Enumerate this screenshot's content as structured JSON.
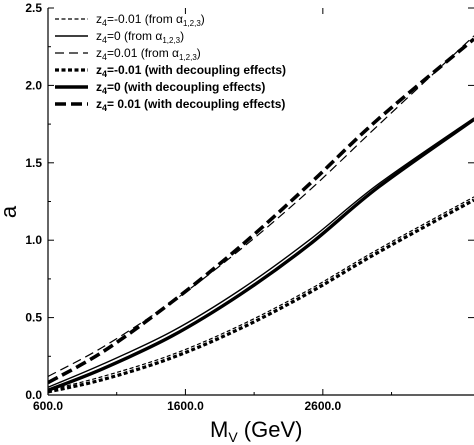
{
  "chart_data": {
    "type": "line",
    "xlabel_main": "M",
    "xlabel_sub": "V",
    "xlabel_unit": " (GeV)",
    "ylabel": "a",
    "xlim": [
      600,
      3700
    ],
    "ylim": [
      0,
      2.5
    ],
    "x_ticks": [
      {
        "value": 600,
        "label": "600.0"
      },
      {
        "value": 1600,
        "label": "1600.0"
      },
      {
        "value": 2600,
        "label": "2600.0"
      }
    ],
    "y_ticks": [
      {
        "value": 0,
        "label": "0.0"
      },
      {
        "value": 0.5,
        "label": "0.5"
      },
      {
        "value": 1.0,
        "label": "1.0"
      },
      {
        "value": 1.5,
        "label": "1.5"
      },
      {
        "value": 2.0,
        "label": "2.0"
      },
      {
        "value": 2.5,
        "label": "2.5"
      }
    ],
    "legend_position": "top-left",
    "series": [
      {
        "label": {
          "main": "z",
          "sub": "4",
          "mid": "=-0.01  (from α",
          "sub2": "1,2,3",
          "end": ")"
        },
        "style": "thin-short-dash",
        "x": [
          600,
          1000,
          1500,
          2000,
          2500,
          3000,
          3700
        ],
        "y": [
          0.03,
          0.12,
          0.26,
          0.45,
          0.68,
          0.94,
          1.28
        ]
      },
      {
        "label": {
          "main": "z",
          "sub": "4",
          "mid": "=0      (from α",
          "sub2": "1,2,3",
          "end": ")"
        },
        "style": "thin-solid",
        "x": [
          600,
          1000,
          1500,
          2000,
          2500,
          3000,
          3700
        ],
        "y": [
          0.05,
          0.2,
          0.41,
          0.68,
          1.0,
          1.36,
          1.79
        ]
      },
      {
        "label": {
          "main": "z",
          "sub": "4",
          "mid": "=0.01  (from α",
          "sub2": "1,2,3",
          "end": ")"
        },
        "style": "thin-long-dash",
        "x": [
          600,
          1000,
          1500,
          2000,
          2500,
          3000,
          3700
        ],
        "y": [
          0.12,
          0.31,
          0.6,
          0.94,
          1.32,
          1.74,
          2.32
        ]
      },
      {
        "label": {
          "main": "z",
          "sub": "4",
          "mid": "=-0.01 (with decoupling effects)",
          "sub2": "",
          "end": ""
        },
        "style": "thick-short-dash",
        "x": [
          600,
          1000,
          1500,
          2000,
          2500,
          3000,
          3700
        ],
        "y": [
          0.02,
          0.1,
          0.24,
          0.43,
          0.66,
          0.92,
          1.26
        ]
      },
      {
        "label": {
          "main": "z",
          "sub": "4",
          "mid": "=0    (with decoupling effects)",
          "sub2": "",
          "end": ""
        },
        "style": "thick-solid",
        "x": [
          600,
          1000,
          1500,
          2000,
          2500,
          3000,
          3700
        ],
        "y": [
          0.03,
          0.17,
          0.38,
          0.65,
          0.97,
          1.34,
          1.78
        ]
      },
      {
        "label": {
          "main": "z",
          "sub": "4",
          "mid": "= 0.01 (with decoupling effects)",
          "sub2": "",
          "end": ""
        },
        "style": "thick-long-dash",
        "x": [
          600,
          1000,
          1500,
          2000,
          2500,
          3000,
          3700
        ],
        "y": [
          0.08,
          0.28,
          0.6,
          0.96,
          1.36,
          1.78,
          2.3
        ]
      }
    ]
  }
}
